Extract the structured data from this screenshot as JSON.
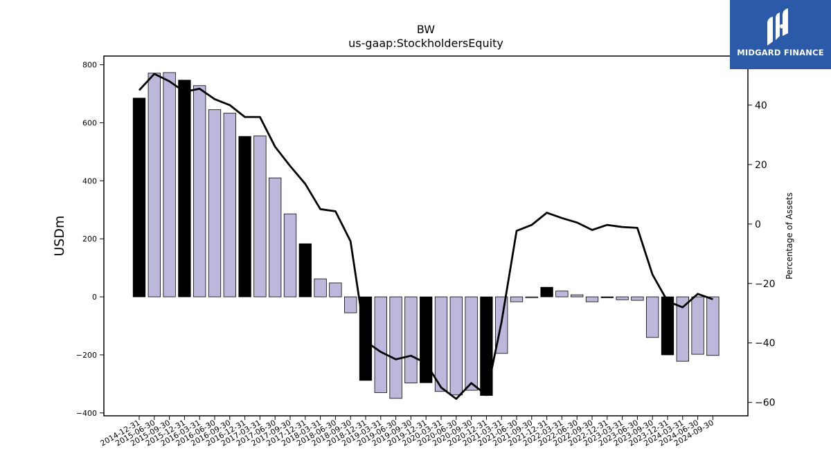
{
  "chart_data": {
    "type": "bar",
    "title": "BW",
    "subtitle": "us-gaap:StockholdersEquity",
    "ylabel": "USDm",
    "y2label": "Percentage of Assets",
    "ylim": [
      -410,
      830
    ],
    "y2lim": [
      -64.5,
      56.5
    ],
    "yticks": [
      -400,
      -200,
      0,
      200,
      400,
      600,
      800
    ],
    "y2ticks": [
      -60,
      -40,
      -20,
      0,
      20,
      40
    ],
    "categories": [
      "2014-12-31",
      "2015-06-30",
      "2015-09-30",
      "2015-12-31",
      "2016-03-31",
      "2016-06-30",
      "2016-09-30",
      "2016-12-31",
      "2017-03-31",
      "2017-06-30",
      "2017-09-30",
      "2017-12-31",
      "2018-03-31",
      "2018-06-30",
      "2018-09-30",
      "2018-12-31",
      "2019-03-31",
      "2019-06-30",
      "2019-09-30",
      "2019-12-31",
      "2020-03-31",
      "2020-06-30",
      "2020-09-30",
      "2020-12-31",
      "2021-03-31",
      "2021-06-30",
      "2021-09-30",
      "2021-12-31",
      "2022-03-31",
      "2022-06-30",
      "2022-09-30",
      "2022-12-31",
      "2023-03-31",
      "2023-06-30",
      "2023-09-30",
      "2023-12-31",
      "2024-03-31",
      "2024-06-30",
      "2024-09-30"
    ],
    "series": [
      {
        "kind": "bar",
        "values": [
          685,
          771,
          773,
          747,
          728,
          645,
          633,
          553,
          555,
          410,
          286,
          183,
          62,
          48,
          -55,
          -288,
          -330,
          -350,
          -297,
          -296,
          -326,
          -338,
          -322,
          -340,
          -195,
          -17,
          -3,
          33,
          20,
          7,
          -17,
          -3,
          -10,
          -12,
          -140,
          -200,
          -222,
          -198,
          -202
        ],
        "year_end_color": "#000000",
        "other_color": "#bcb8db",
        "edge_color": "#000000"
      },
      {
        "kind": "line",
        "axis": "right",
        "color": "#000000",
        "values": [
          45,
          50.5,
          48,
          44.5,
          45.5,
          42,
          40,
          36,
          36,
          26,
          19.5,
          13.5,
          5,
          4.3,
          -5.8,
          -39.5,
          -43,
          -45.5,
          -44.3,
          -46.8,
          -55,
          -58.8,
          -53.5,
          -57.5,
          -33,
          -2.3,
          -0.3,
          3.8,
          2,
          0.5,
          -2,
          -0.3,
          -1,
          -1.3,
          -17,
          -26,
          -28,
          -23.5,
          -25.3
        ]
      }
    ],
    "grid": false
  },
  "logo": {
    "text": "MIDGARD FINANCE",
    "background": "#2b5aa8"
  }
}
